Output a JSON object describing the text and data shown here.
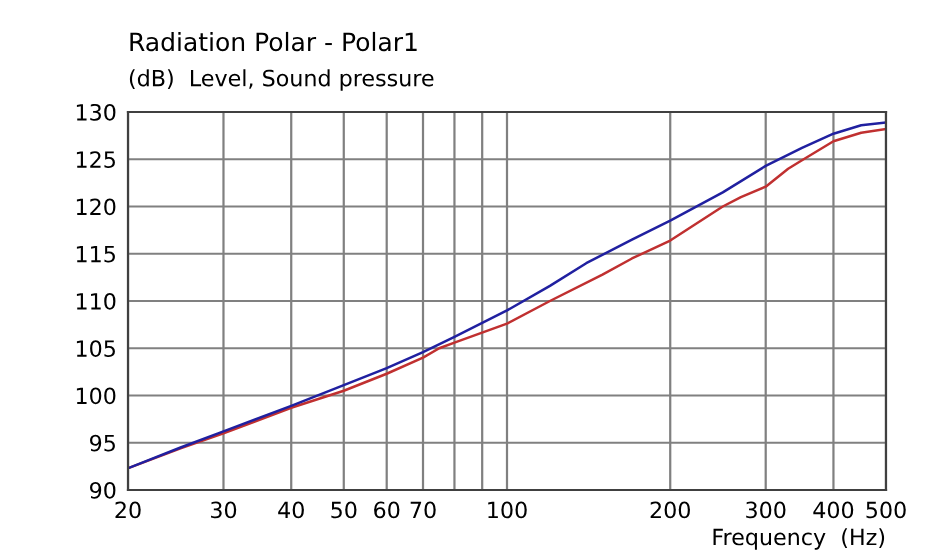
{
  "chart_data": {
    "type": "line",
    "title": "Radiation Polar - Polar1",
    "subtitle": "(dB)  Level, Sound pressure",
    "xlabel": "Frequency  (Hz)",
    "log": "x",
    "xlim": [
      20,
      500
    ],
    "ylim": [
      90,
      130
    ],
    "xticks": [
      20,
      30,
      40,
      50,
      60,
      70,
      {
        "value": 80,
        "label": null
      },
      {
        "value": 90,
        "label": null
      },
      100,
      200,
      300,
      400,
      500
    ],
    "yticks": [
      90,
      95,
      100,
      105,
      110,
      115,
      120,
      125,
      130
    ],
    "grid": true,
    "legend": false,
    "series": [
      {
        "color": "#c03030",
        "x": [
          20,
          25,
          30,
          40,
          50,
          60,
          70,
          75,
          80,
          100,
          120,
          150,
          170,
          200,
          250,
          270,
          300,
          330,
          350,
          400,
          450,
          500
        ],
        "values": [
          92.3,
          94.4,
          96.0,
          98.7,
          100.5,
          102.3,
          104.0,
          105.0,
          105.6,
          107.6,
          110.0,
          112.8,
          114.5,
          116.4,
          120.0,
          121.0,
          122.1,
          124.0,
          124.9,
          126.9,
          127.8,
          128.2
        ]
      },
      {
        "color": "#2020a0",
        "x": [
          20,
          25,
          30,
          40,
          50,
          60,
          70,
          80,
          100,
          120,
          140,
          170,
          200,
          250,
          300,
          350,
          400,
          450,
          500
        ],
        "values": [
          92.3,
          94.5,
          96.2,
          98.9,
          101.1,
          102.9,
          104.6,
          106.2,
          109.0,
          111.6,
          114.0,
          116.5,
          118.5,
          121.5,
          124.3,
          126.2,
          127.7,
          128.6,
          128.9
        ]
      }
    ]
  }
}
